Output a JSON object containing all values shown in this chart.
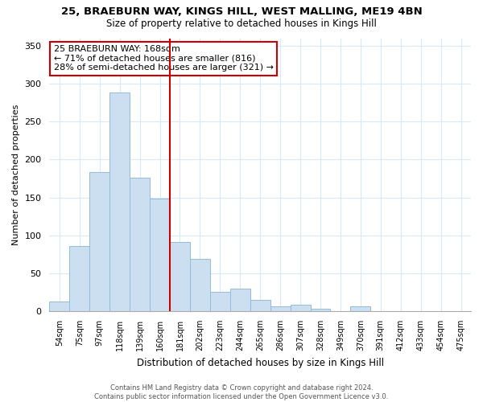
{
  "title": "25, BRAEBURN WAY, KINGS HILL, WEST MALLING, ME19 4BN",
  "subtitle": "Size of property relative to detached houses in Kings Hill",
  "xlabel": "Distribution of detached houses by size in Kings Hill",
  "ylabel": "Number of detached properties",
  "bar_labels": [
    "54sqm",
    "75sqm",
    "97sqm",
    "118sqm",
    "139sqm",
    "160sqm",
    "181sqm",
    "202sqm",
    "223sqm",
    "244sqm",
    "265sqm",
    "286sqm",
    "307sqm",
    "328sqm",
    "349sqm",
    "370sqm",
    "391sqm",
    "412sqm",
    "433sqm",
    "454sqm",
    "475sqm"
  ],
  "bar_values": [
    13,
    86,
    184,
    288,
    176,
    148,
    91,
    69,
    26,
    30,
    15,
    6,
    9,
    3,
    0,
    6,
    0,
    0,
    0,
    0,
    0
  ],
  "bar_color": "#ccdff0",
  "bar_edge_color": "#92bcd8",
  "vline_x": 5.5,
  "vline_color": "#cc0000",
  "annotation_text": "25 BRAEBURN WAY: 168sqm\n← 71% of detached houses are smaller (816)\n28% of semi-detached houses are larger (321) →",
  "annotation_box_color": "#ffffff",
  "annotation_box_edgecolor": "#cc0000",
  "ylim": [
    0,
    360
  ],
  "yticks": [
    0,
    50,
    100,
    150,
    200,
    250,
    300,
    350
  ],
  "footer_text": "Contains HM Land Registry data © Crown copyright and database right 2024.\nContains public sector information licensed under the Open Government Licence v3.0.",
  "background_color": "#ffffff",
  "grid_color": "#d8e8f4"
}
